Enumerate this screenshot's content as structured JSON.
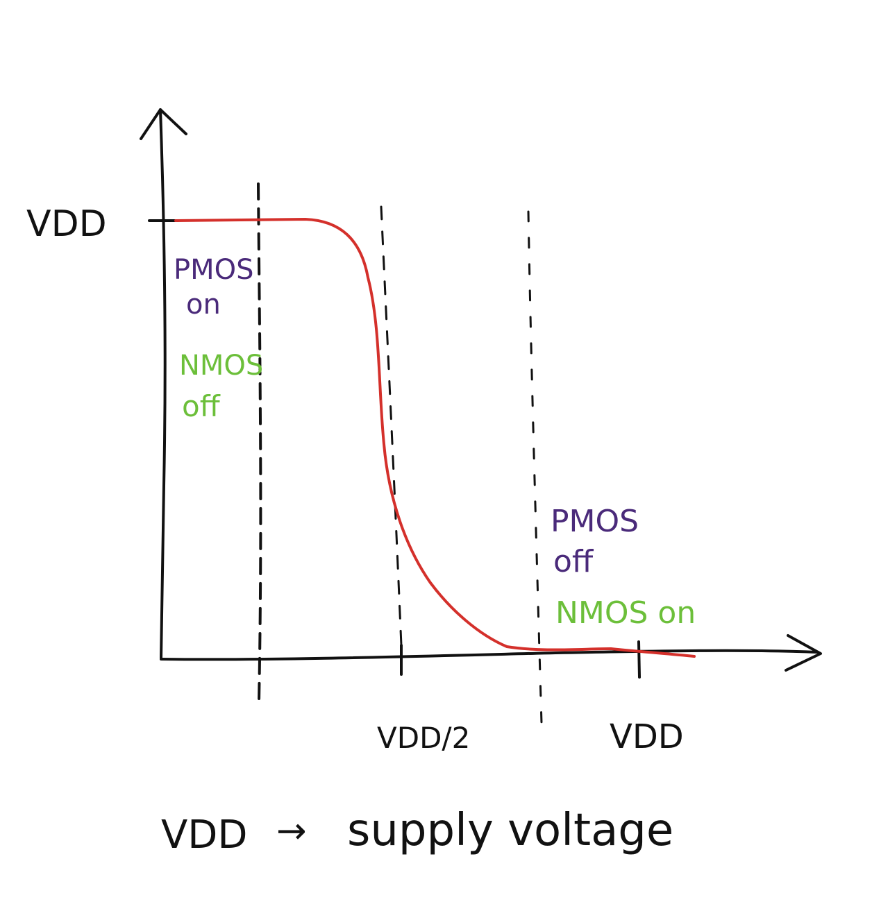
{
  "colors": {
    "ink": "#111111",
    "curve": "#d4302b",
    "pmos": "#4a2a7a",
    "nmos": "#6cbf3a"
  },
  "axes": {
    "y_top_label": "VDD",
    "x_mid_label": "VDD/2",
    "x_end_label": "VDD"
  },
  "regions": {
    "left": {
      "pmos_line1": "PMOS",
      "pmos_line2": "on",
      "nmos_line1": "NMOS",
      "nmos_line2": "off"
    },
    "right": {
      "pmos_line1": "PMOS",
      "pmos_line2": "off",
      "nmos_line": "NMOS on"
    }
  },
  "caption": {
    "term": "VDD",
    "arrow": "→",
    "definition": "supply voltage"
  },
  "chart_data": {
    "type": "line",
    "title": "",
    "xlabel": "",
    "ylabel": "",
    "x_ticks": [
      "VDD/2",
      "VDD"
    ],
    "y_ticks": [
      "VDD"
    ],
    "series": [
      {
        "description_points_fraction_of_VDD": [
          [
            0.0,
            1.0
          ],
          [
            0.2,
            1.0
          ],
          [
            0.33,
            1.0
          ],
          [
            0.42,
            0.93
          ],
          [
            0.46,
            0.75
          ],
          [
            0.48,
            0.5
          ],
          [
            0.52,
            0.28
          ],
          [
            0.58,
            0.1
          ],
          [
            0.68,
            0.02
          ],
          [
            0.85,
            0.01
          ],
          [
            1.1,
            0.0
          ]
        ]
      }
    ]
  }
}
